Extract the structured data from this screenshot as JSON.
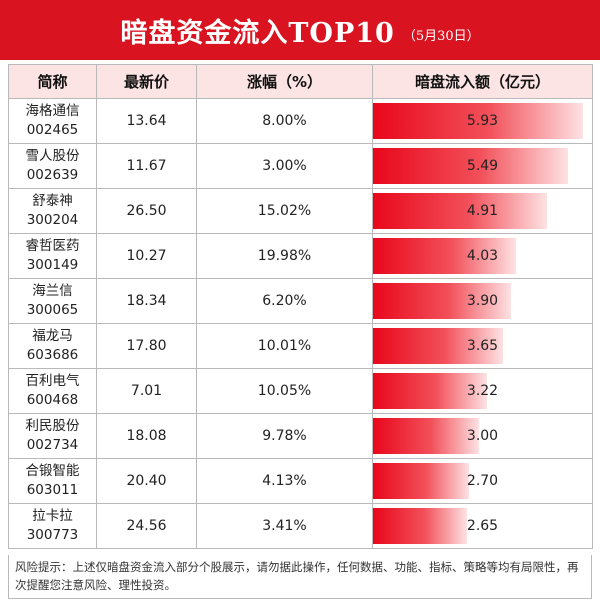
{
  "header": {
    "title": "暗盘资金流入TOP10",
    "date": "（5月30日）"
  },
  "columns": [
    "简称",
    "最新价",
    "涨幅（%）",
    "暗盘流入额（亿元）"
  ],
  "rows": [
    {
      "name": "海格通信",
      "code": "002465",
      "price": "13.64",
      "change": "8.00%",
      "inflow": "5.93",
      "bar_fraction": 1.0
    },
    {
      "name": "雪人股份",
      "code": "002639",
      "price": "11.67",
      "change": "3.00%",
      "inflow": "5.49",
      "bar_fraction": 0.926
    },
    {
      "name": "舒泰神",
      "code": "300204",
      "price": "26.50",
      "change": "15.02%",
      "inflow": "4.91",
      "bar_fraction": 0.828
    },
    {
      "name": "睿哲医药",
      "code": "300149",
      "price": "10.27",
      "change": "19.98%",
      "inflow": "4.03",
      "bar_fraction": 0.68
    },
    {
      "name": "海兰信",
      "code": "300065",
      "price": "18.34",
      "change": "6.20%",
      "inflow": "3.90",
      "bar_fraction": 0.658
    },
    {
      "name": "福龙马",
      "code": "603686",
      "price": "17.80",
      "change": "10.01%",
      "inflow": "3.65",
      "bar_fraction": 0.616
    },
    {
      "name": "百利电气",
      "code": "600468",
      "price": "7.01",
      "change": "10.05%",
      "inflow": "3.22",
      "bar_fraction": 0.543
    },
    {
      "name": "利民股份",
      "code": "002734",
      "price": "18.08",
      "change": "9.78%",
      "inflow": "3.00",
      "bar_fraction": 0.506
    },
    {
      "name": "合锻智能",
      "code": "603011",
      "price": "20.40",
      "change": "4.13%",
      "inflow": "2.70",
      "bar_fraction": 0.455
    },
    {
      "name": "拉卡拉",
      "code": "300773",
      "price": "24.56",
      "change": "3.41%",
      "inflow": "2.65",
      "bar_fraction": 0.447
    }
  ],
  "footer": {
    "text": "风险提示：上述仅暗盘资金流入部分个股展示，请勿据此操作，任何数据、功能、指标、策略等均有局限性，再次提醒您注意风险、理性投资。"
  },
  "colors": {
    "header_bg": "#d9131f",
    "th_bg": "#fde4e4",
    "bar_start": "#e8071b"
  }
}
